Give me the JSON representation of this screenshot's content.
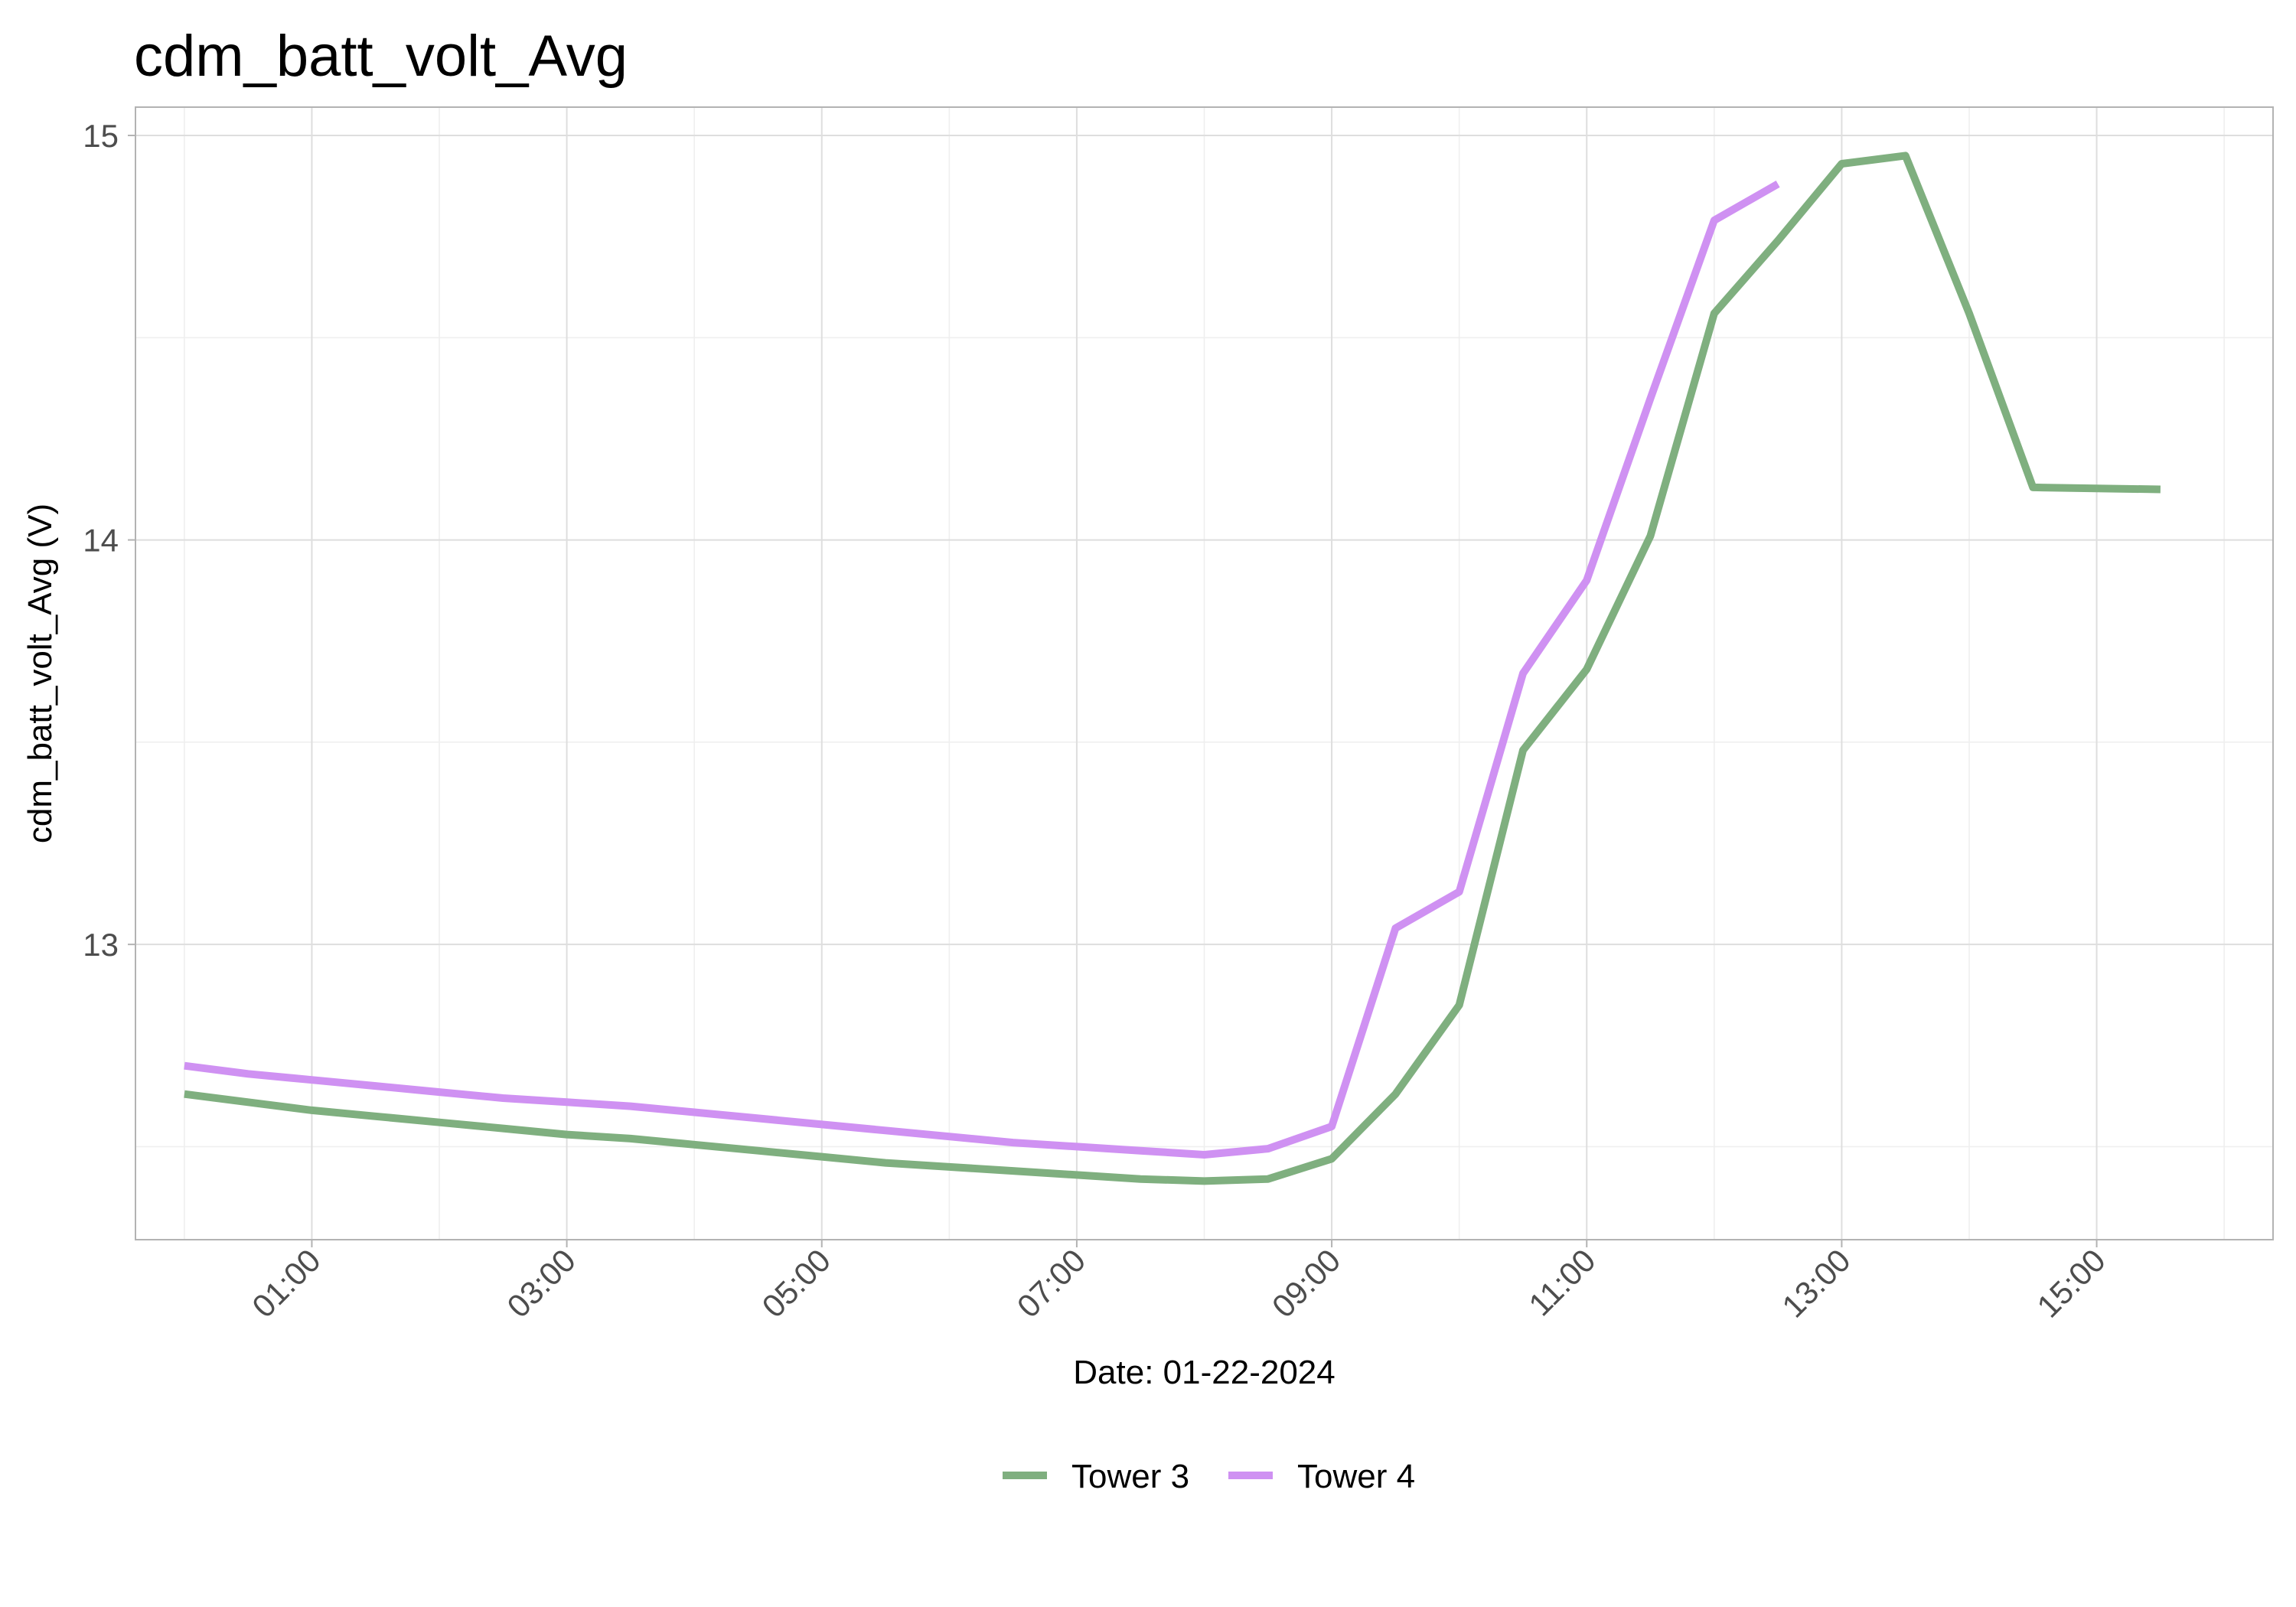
{
  "chart_data": {
    "type": "line",
    "title": "cdm_batt_volt_Avg",
    "xlabel": "Date: 01-22-2024",
    "ylabel": "cdm_batt_volt_Avg (V)",
    "x_unit": "hour of day",
    "xlim": [
      "23:37",
      "16:23"
    ],
    "ylim": [
      12.27,
      15.07
    ],
    "y_ticks": [
      13,
      14,
      15
    ],
    "x_ticks": [
      "01:00",
      "03:00",
      "05:00",
      "07:00",
      "09:00",
      "11:00",
      "13:00",
      "15:00"
    ],
    "grid": true,
    "legend_position": "bottom",
    "series": [
      {
        "name": "Tower 3",
        "color": "#7faf7f",
        "points": [
          [
            "00:00",
            12.63
          ],
          [
            "00:30",
            12.61
          ],
          [
            "01:00",
            12.59
          ],
          [
            "01:30",
            12.575
          ],
          [
            "02:00",
            12.56
          ],
          [
            "02:30",
            12.545
          ],
          [
            "03:00",
            12.53
          ],
          [
            "03:30",
            12.52
          ],
          [
            "04:00",
            12.505
          ],
          [
            "04:30",
            12.49
          ],
          [
            "05:00",
            12.475
          ],
          [
            "05:30",
            12.46
          ],
          [
            "06:00",
            12.45
          ],
          [
            "06:30",
            12.44
          ],
          [
            "07:00",
            12.43
          ],
          [
            "07:30",
            12.42
          ],
          [
            "08:00",
            12.415
          ],
          [
            "08:30",
            12.42
          ],
          [
            "09:00",
            12.47
          ],
          [
            "09:30",
            12.63
          ],
          [
            "10:00",
            12.85
          ],
          [
            "10:30",
            13.48
          ],
          [
            "11:00",
            13.68
          ],
          [
            "11:30",
            14.01
          ],
          [
            "12:00",
            14.56
          ],
          [
            "12:30",
            14.74
          ],
          [
            "13:00",
            14.93
          ],
          [
            "13:30",
            14.95
          ],
          [
            "14:00",
            14.56
          ],
          [
            "14:30",
            14.13
          ],
          [
            "15:30",
            14.125
          ]
        ]
      },
      {
        "name": "Tower 4",
        "color": "#cf91f2",
        "points": [
          [
            "00:00",
            12.7
          ],
          [
            "00:30",
            12.68
          ],
          [
            "01:00",
            12.665
          ],
          [
            "01:30",
            12.65
          ],
          [
            "02:00",
            12.635
          ],
          [
            "02:30",
            12.62
          ],
          [
            "03:00",
            12.61
          ],
          [
            "03:30",
            12.6
          ],
          [
            "04:00",
            12.585
          ],
          [
            "04:30",
            12.57
          ],
          [
            "05:00",
            12.555
          ],
          [
            "05:30",
            12.54
          ],
          [
            "06:00",
            12.525
          ],
          [
            "06:30",
            12.51
          ],
          [
            "07:00",
            12.5
          ],
          [
            "07:30",
            12.49
          ],
          [
            "08:00",
            12.48
          ],
          [
            "08:30",
            12.495
          ],
          [
            "09:00",
            12.55
          ],
          [
            "09:30",
            13.04
          ],
          [
            "10:00",
            13.13
          ],
          [
            "10:30",
            13.67
          ],
          [
            "11:00",
            13.9
          ],
          [
            "11:30",
            14.35
          ],
          [
            "12:00",
            14.79
          ],
          [
            "12:30",
            14.88
          ]
        ]
      }
    ]
  }
}
